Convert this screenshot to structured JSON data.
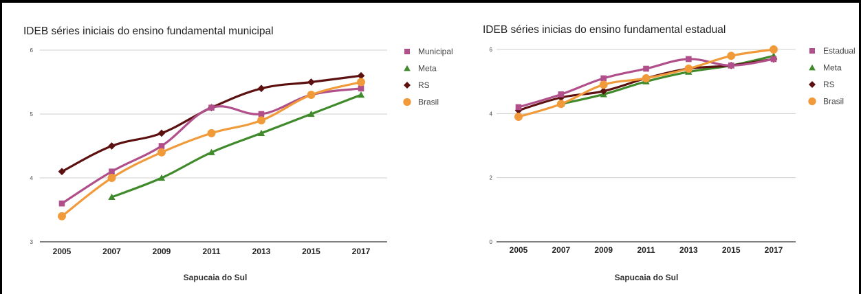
{
  "chart_data": [
    {
      "type": "line",
      "title": "IDEB séries iniciais do ensino fundamental municipal",
      "xlabel": "Sapucaia do Sul",
      "ylabel": "",
      "x": [
        "2005",
        "2007",
        "2009",
        "2011",
        "2013",
        "2015",
        "2017"
      ],
      "ylim": [
        3,
        6
      ],
      "yticks": [
        "3",
        "4",
        "5",
        "6"
      ],
      "grid": true,
      "legend": "right",
      "series": [
        {
          "name": "Municipal",
          "color": "#b04f8a",
          "marker": "square",
          "values": [
            3.6,
            4.1,
            4.5,
            5.1,
            5.0,
            5.3,
            5.4
          ]
        },
        {
          "name": "Meta",
          "color": "#3f8a2a",
          "marker": "triangle",
          "values": [
            null,
            3.7,
            4.0,
            4.4,
            4.7,
            5.0,
            5.3
          ]
        },
        {
          "name": "RS",
          "color": "#5c1010",
          "marker": "diamond",
          "values": [
            4.1,
            4.5,
            4.7,
            5.1,
            5.4,
            5.5,
            5.6
          ]
        },
        {
          "name": "Brasil",
          "color": "#f09a3a",
          "marker": "circle",
          "values": [
            3.4,
            4.0,
            4.4,
            4.7,
            4.9,
            5.3,
            5.5
          ]
        }
      ]
    },
    {
      "type": "line",
      "title": "IDEB séries inicias do ensino fundamental estadual",
      "xlabel": "Sapucaia do Sul",
      "ylabel": "",
      "x": [
        "2005",
        "2007",
        "2009",
        "2011",
        "2013",
        "2015",
        "2017"
      ],
      "ylim": [
        0,
        6
      ],
      "yticks": [
        "0",
        "2",
        "4",
        "6"
      ],
      "grid": true,
      "legend": "right",
      "series": [
        {
          "name": "Estadual",
          "color": "#b04f8a",
          "marker": "square",
          "values": [
            4.2,
            4.6,
            5.1,
            5.4,
            5.7,
            5.5,
            5.7
          ]
        },
        {
          "name": "Meta",
          "color": "#3f8a2a",
          "marker": "triangle",
          "values": [
            null,
            4.3,
            4.6,
            5.0,
            5.3,
            5.5,
            5.8
          ]
        },
        {
          "name": "RS",
          "color": "#5c1010",
          "marker": "diamond",
          "values": [
            4.1,
            4.5,
            4.7,
            5.1,
            5.4,
            5.5,
            5.7
          ]
        },
        {
          "name": "Brasil",
          "color": "#f09a3a",
          "marker": "circle",
          "values": [
            3.9,
            4.3,
            4.9,
            5.1,
            5.4,
            5.8,
            6.0
          ]
        }
      ]
    }
  ]
}
